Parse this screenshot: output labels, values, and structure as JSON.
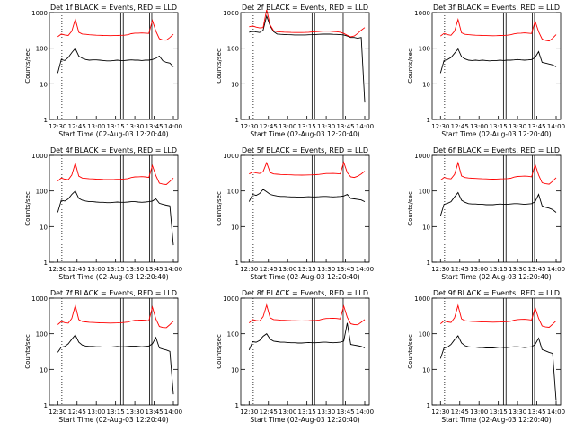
{
  "chart_data": [
    {
      "type": "line",
      "title": "Det 1f BLACK = Events, RED = LLD",
      "xlabel": "Start Time (02-Aug-03 12:20:40)",
      "ylabel": "Counts/sec",
      "xticks": [
        "12:30",
        "12:45",
        "13:00",
        "13:15",
        "13:30",
        "13:45",
        "14:00"
      ],
      "yticks": [
        "1",
        "10",
        "100",
        "1000"
      ],
      "ylim": [
        1,
        1000
      ],
      "yscale": "log",
      "series": [
        {
          "color": "#000000",
          "values": [
            20,
            48,
            45,
            55,
            75,
            98,
            60,
            52,
            48,
            46,
            47,
            47,
            46,
            45,
            44,
            44,
            45,
            46,
            45,
            45,
            46,
            47,
            46,
            46,
            45,
            46,
            46,
            48,
            52,
            60,
            44,
            40,
            38,
            30
          ]
        },
        {
          "color": "#ff0000",
          "values": [
            210,
            250,
            235,
            228,
            300,
            650,
            280,
            250,
            245,
            238,
            235,
            232,
            230,
            228,
            226,
            225,
            226,
            228,
            230,
            232,
            238,
            255,
            265,
            265,
            268,
            265,
            260,
            600,
            300,
            185,
            170,
            168,
            200,
            245
          ]
        }
      ]
    },
    {
      "type": "line",
      "title": "Det 2f BLACK = Events, RED = LLD",
      "xlabel": "Start Time (02-Aug-03 12:20:40)",
      "ylabel": "Counts/sec",
      "xticks": [
        "12:30",
        "12:45",
        "13:00",
        "13:15",
        "13:30",
        "13:45",
        "14:00"
      ],
      "yticks": [
        "1",
        "10",
        "100",
        "1000"
      ],
      "ylim": [
        1,
        1000
      ],
      "yscale": "log",
      "series": [
        {
          "color": "#000000",
          "values": [
            280,
            300,
            285,
            275,
            320,
            800,
            420,
            290,
            250,
            245,
            242,
            240,
            238,
            236,
            235,
            235,
            236,
            238,
            240,
            242,
            245,
            248,
            250,
            248,
            246,
            244,
            240,
            235,
            220,
            200,
            200,
            190,
            200,
            3
          ]
        },
        {
          "color": "#ff0000",
          "values": [
            400,
            420,
            390,
            370,
            380,
            1200,
            450,
            310,
            290,
            285,
            282,
            280,
            278,
            276,
            275,
            275,
            277,
            280,
            285,
            290,
            295,
            300,
            305,
            300,
            295,
            290,
            280,
            260,
            230,
            210,
            220,
            260,
            320,
            380
          ]
        }
      ]
    },
    {
      "type": "line",
      "title": "Det 3f BLACK = Events, RED = LLD",
      "xlabel": "Start Time (02-Aug-03 12:20:40)",
      "ylabel": "Counts/sec",
      "xticks": [
        "12:30",
        "12:45",
        "13:00",
        "13:15",
        "13:30",
        "13:45",
        "14:00"
      ],
      "yticks": [
        "1",
        "10",
        "100",
        "1000"
      ],
      "ylim": [
        1,
        1000
      ],
      "yscale": "log",
      "series": [
        {
          "color": "#000000",
          "values": [
            20,
            45,
            48,
            55,
            72,
            95,
            58,
            50,
            46,
            45,
            46,
            45,
            46,
            45,
            44,
            45,
            45,
            46,
            45,
            46,
            46,
            47,
            48,
            47,
            46,
            47,
            48,
            55,
            80,
            40,
            38,
            36,
            34,
            30
          ]
        },
        {
          "color": "#ff0000",
          "values": [
            220,
            260,
            240,
            230,
            300,
            640,
            270,
            245,
            240,
            236,
            232,
            230,
            228,
            226,
            225,
            224,
            225,
            227,
            229,
            232,
            238,
            252,
            262,
            265,
            270,
            265,
            258,
            580,
            290,
            180,
            165,
            160,
            190,
            240
          ]
        }
      ]
    },
    {
      "type": "line",
      "title": "Det 4f BLACK = Events, RED = LLD",
      "xlabel": "Start Time (02-Aug-03 12:20:40)",
      "ylabel": "Counts/sec",
      "xticks": [
        "12:30",
        "12:45",
        "13:00",
        "13:15",
        "13:30",
        "13:45",
        "14:00"
      ],
      "yticks": [
        "1",
        "10",
        "100",
        "1000"
      ],
      "ylim": [
        1,
        1000
      ],
      "yscale": "log",
      "series": [
        {
          "color": "#000000",
          "values": [
            25,
            55,
            52,
            60,
            80,
            100,
            62,
            55,
            52,
            50,
            50,
            49,
            48,
            48,
            47,
            47,
            48,
            49,
            48,
            48,
            49,
            50,
            50,
            49,
            48,
            49,
            50,
            52,
            60,
            45,
            42,
            40,
            38,
            3
          ]
        },
        {
          "color": "#ff0000",
          "values": [
            190,
            230,
            215,
            208,
            280,
            600,
            260,
            230,
            225,
            220,
            218,
            215,
            213,
            211,
            210,
            209,
            210,
            212,
            214,
            217,
            222,
            238,
            248,
            250,
            252,
            248,
            240,
            520,
            270,
            165,
            155,
            152,
            185,
            230
          ]
        }
      ]
    },
    {
      "type": "line",
      "title": "Det 5f BLACK = Events, RED = LLD",
      "xlabel": "Start Time (02-Aug-03 12:20:40)",
      "ylabel": "Counts/sec",
      "xticks": [
        "12:30",
        "12:45",
        "13:00",
        "13:15",
        "13:30",
        "13:45",
        "14:00"
      ],
      "yticks": [
        "1",
        "10",
        "100",
        "1000"
      ],
      "ylim": [
        1,
        1000
      ],
      "yscale": "log",
      "series": [
        {
          "color": "#000000",
          "values": [
            50,
            80,
            75,
            85,
            110,
            95,
            80,
            75,
            72,
            70,
            70,
            69,
            68,
            68,
            67,
            67,
            68,
            69,
            68,
            68,
            69,
            70,
            70,
            69,
            68,
            69,
            70,
            72,
            80,
            62,
            60,
            58,
            56,
            50
          ]
        },
        {
          "color": "#ff0000",
          "values": [
            300,
            340,
            320,
            310,
            350,
            620,
            330,
            300,
            295,
            290,
            288,
            285,
            283,
            281,
            280,
            279,
            280,
            282,
            284,
            287,
            292,
            300,
            310,
            310,
            312,
            308,
            300,
            640,
            330,
            250,
            240,
            260,
            300,
            360
          ]
        }
      ]
    },
    {
      "type": "line",
      "title": "Det 6f BLACK = Events, RED = LLD",
      "xlabel": "Start Time (02-Aug-03 12:20:40)",
      "ylabel": "Counts/sec",
      "xticks": [
        "12:30",
        "12:45",
        "13:00",
        "13:15",
        "13:30",
        "13:45",
        "14:00"
      ],
      "yticks": [
        "1",
        "10",
        "100",
        "1000"
      ],
      "ylim": [
        1,
        1000
      ],
      "yscale": "log",
      "series": [
        {
          "color": "#000000",
          "values": [
            20,
            42,
            45,
            50,
            68,
            90,
            55,
            48,
            44,
            43,
            43,
            42,
            42,
            41,
            41,
            41,
            42,
            43,
            42,
            42,
            43,
            44,
            44,
            43,
            42,
            43,
            44,
            50,
            80,
            38,
            35,
            33,
            30,
            25
          ]
        },
        {
          "color": "#ff0000",
          "values": [
            200,
            240,
            225,
            218,
            290,
            620,
            265,
            238,
            232,
            228,
            225,
            222,
            220,
            218,
            216,
            215,
            216,
            218,
            220,
            223,
            228,
            245,
            255,
            258,
            262,
            258,
            250,
            560,
            280,
            170,
            160,
            155,
            188,
            235
          ]
        }
      ]
    },
    {
      "type": "line",
      "title": "Det 7f BLACK = Events, RED = LLD",
      "xlabel": "Start Time (02-Aug-03 12:20:40)",
      "ylabel": "Counts/sec",
      "xticks": [
        "12:30",
        "12:45",
        "13:00",
        "13:15",
        "13:30",
        "13:45",
        "14:00"
      ],
      "yticks": [
        "1",
        "10",
        "100",
        "1000"
      ],
      "ylim": [
        1,
        1000
      ],
      "yscale": "log",
      "series": [
        {
          "color": "#000000",
          "values": [
            30,
            42,
            44,
            52,
            70,
            92,
            58,
            48,
            45,
            44,
            44,
            43,
            43,
            42,
            42,
            42,
            43,
            44,
            43,
            43,
            44,
            45,
            45,
            44,
            43,
            44,
            45,
            52,
            78,
            40,
            37,
            35,
            32,
            2
          ]
        },
        {
          "color": "#ff0000",
          "values": [
            180,
            220,
            205,
            198,
            270,
            620,
            250,
            220,
            215,
            210,
            208,
            205,
            203,
            201,
            200,
            199,
            200,
            202,
            204,
            207,
            212,
            228,
            238,
            240,
            242,
            238,
            230,
            560,
            260,
            160,
            150,
            148,
            180,
            225
          ]
        }
      ]
    },
    {
      "type": "line",
      "title": "Det 8f BLACK = Events, RED = LLD",
      "xlabel": "Start Time (02-Aug-03 12:20:40)",
      "ylabel": "Counts/sec",
      "xticks": [
        "12:30",
        "12:45",
        "13:00",
        "13:15",
        "13:30",
        "13:45",
        "14:00"
      ],
      "yticks": [
        "1",
        "10",
        "100",
        "1000"
      ],
      "ylim": [
        1,
        1000
      ],
      "yscale": "log",
      "series": [
        {
          "color": "#000000",
          "values": [
            35,
            60,
            58,
            65,
            85,
            100,
            70,
            62,
            60,
            58,
            58,
            57,
            56,
            56,
            55,
            55,
            56,
            57,
            56,
            56,
            57,
            58,
            58,
            57,
            56,
            57,
            58,
            62,
            200,
            50,
            48,
            46,
            44,
            40
          ]
        },
        {
          "color": "#ff0000",
          "values": [
            200,
            250,
            235,
            228,
            300,
            640,
            280,
            250,
            245,
            240,
            238,
            235,
            233,
            231,
            230,
            229,
            230,
            232,
            234,
            237,
            242,
            258,
            268,
            270,
            272,
            268,
            260,
            600,
            290,
            190,
            180,
            178,
            210,
            250
          ]
        }
      ]
    },
    {
      "type": "line",
      "title": "Det 9f BLACK = Events, RED = LLD",
      "xlabel": "Start Time (02-Aug-03 12:20:40)",
      "ylabel": "Counts/sec",
      "xticks": [
        "12:30",
        "12:45",
        "13:00",
        "13:15",
        "13:30",
        "13:45",
        "14:00"
      ],
      "yticks": [
        "1",
        "10",
        "100",
        "1000"
      ],
      "ylim": [
        1,
        1000
      ],
      "yscale": "log",
      "series": [
        {
          "color": "#000000",
          "values": [
            20,
            40,
            42,
            50,
            68,
            88,
            55,
            46,
            43,
            42,
            42,
            41,
            41,
            40,
            40,
            40,
            41,
            42,
            41,
            41,
            42,
            43,
            43,
            42,
            41,
            42,
            43,
            50,
            75,
            36,
            33,
            30,
            28,
            1.3
          ]
        },
        {
          "color": "#ff0000",
          "values": [
            190,
            230,
            215,
            208,
            280,
            620,
            262,
            232,
            226,
            222,
            220,
            217,
            215,
            213,
            212,
            211,
            212,
            214,
            216,
            219,
            224,
            240,
            250,
            252,
            254,
            250,
            242,
            540,
            270,
            165,
            155,
            152,
            185,
            230
          ]
        }
      ]
    }
  ]
}
